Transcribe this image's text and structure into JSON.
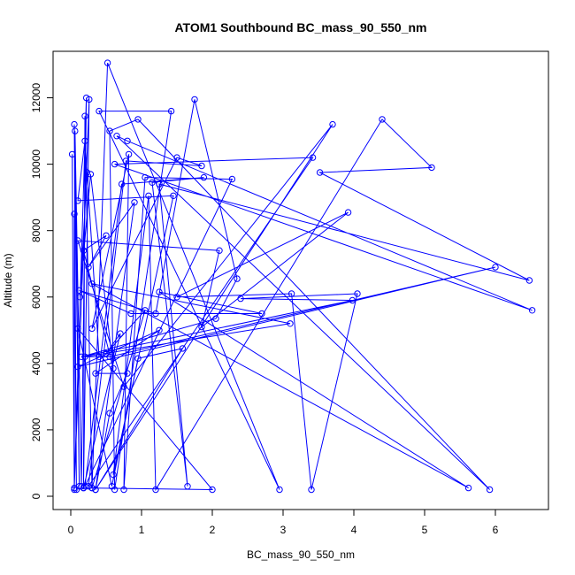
{
  "chart_data": {
    "type": "line",
    "title": "ATOM1 Southbound BC_mass_90_550_nm",
    "xlabel": "BC_mass_90_550_nm",
    "ylabel": "Altitude (m)",
    "xlim": [
      -0.25,
      6.75
    ],
    "ylim": [
      -400,
      13400
    ],
    "x_ticks": [
      0,
      1,
      2,
      3,
      4,
      5,
      6
    ],
    "y_ticks": [
      0,
      2000,
      4000,
      6000,
      8000,
      10000,
      12000
    ],
    "grid": false,
    "legend": "none",
    "line_color": "#0000ff",
    "marker": "open-circle",
    "series": [
      {
        "points": [
          [
            0.02,
            10300
          ],
          [
            0.05,
            200
          ],
          [
            0.05,
            8500
          ],
          [
            0.08,
            200
          ],
          [
            0.05,
            11200
          ],
          [
            0.12,
            300
          ],
          [
            0.06,
            11000
          ],
          [
            0.15,
            300
          ],
          [
            0.22,
            12000
          ],
          [
            0.05,
            250
          ],
          [
            0.26,
            11950
          ],
          [
            0.18,
            250
          ],
          [
            0.2,
            11450
          ],
          [
            0.3,
            250
          ],
          [
            0.52,
            13050
          ],
          [
            2.95,
            200
          ],
          [
            0.4,
            11600
          ],
          [
            1.42,
            11600
          ],
          [
            0.62,
            200
          ],
          [
            0.55,
            11000
          ],
          [
            0.95,
            11350
          ],
          [
            5.92,
            200
          ],
          [
            0.65,
            10850
          ],
          [
            0.8,
            10700
          ],
          [
            6.52,
            5600
          ],
          [
            0.62,
            10000
          ],
          [
            3.42,
            10200
          ],
          [
            0.25,
            300
          ],
          [
            0.78,
            10100
          ],
          [
            1.85,
            9950
          ],
          [
            1.5,
            10200
          ],
          [
            0.3,
            5050
          ],
          [
            0.82,
            10300
          ],
          [
            0.75,
            200
          ],
          [
            1.05,
            9600
          ],
          [
            2.28,
            9550
          ],
          [
            0.2,
            300
          ],
          [
            0.72,
            9400
          ],
          [
            1.88,
            9600
          ],
          [
            1.15,
            9450
          ],
          [
            1.65,
            300
          ],
          [
            1.25,
            9400
          ],
          [
            6.48,
            6500
          ],
          [
            3.52,
            9750
          ],
          [
            5.1,
            9900
          ],
          [
            4.4,
            11350
          ],
          [
            1.2,
            200
          ],
          [
            1.1,
            9050
          ],
          [
            0.6,
            650
          ],
          [
            1.45,
            9050
          ],
          [
            0.1,
            8900
          ],
          [
            0.2,
            10700
          ],
          [
            0.4,
            4200
          ],
          [
            0.23,
            9750
          ],
          [
            0.13,
            6000
          ],
          [
            0.28,
            9700
          ],
          [
            0.6,
            3850
          ],
          [
            0.18,
            7400
          ],
          [
            0.5,
            7850
          ],
          [
            0.25,
            6900
          ],
          [
            0.9,
            8850
          ],
          [
            0.35,
            200
          ],
          [
            3.7,
            11200
          ],
          [
            0.75,
            3300
          ],
          [
            0.1,
            7700
          ],
          [
            2.1,
            7400
          ],
          [
            1.85,
            5100
          ],
          [
            3.92,
            8550
          ],
          [
            1.5,
            6000
          ],
          [
            3.12,
            6100
          ],
          [
            3.4,
            200
          ],
          [
            4.05,
            6100
          ],
          [
            2.4,
            5950
          ],
          [
            3.98,
            5900
          ],
          [
            0.15,
            4200
          ],
          [
            2.05,
            5350
          ],
          [
            2.35,
            6550
          ],
          [
            1.75,
            11950
          ],
          [
            1.2,
            5500
          ],
          [
            0.12,
            6200
          ],
          [
            0.85,
            5500
          ],
          [
            2.7,
            5500
          ],
          [
            1.25,
            6150
          ],
          [
            5.62,
            250
          ],
          [
            0.3,
            6400
          ],
          [
            3.1,
            5200
          ],
          [
            0.2,
            4200
          ],
          [
            0.55,
            4200
          ],
          [
            6.0,
            6900
          ],
          [
            0.1,
            3900
          ],
          [
            1.25,
            5000
          ],
          [
            0.35,
            3700
          ],
          [
            0.8,
            3700
          ],
          [
            0.55,
            2500
          ],
          [
            0.35,
            200
          ],
          [
            1.58,
            4450
          ],
          [
            0.95,
            4150
          ],
          [
            0.58,
            300
          ],
          [
            0.1,
            5050
          ],
          [
            2.0,
            200
          ],
          [
            0.18,
            250
          ],
          [
            0.7,
            4900
          ],
          [
            0.5,
            4300
          ],
          [
            1.05,
            5600
          ],
          [
            0.3,
            250
          ]
        ]
      }
    ]
  }
}
